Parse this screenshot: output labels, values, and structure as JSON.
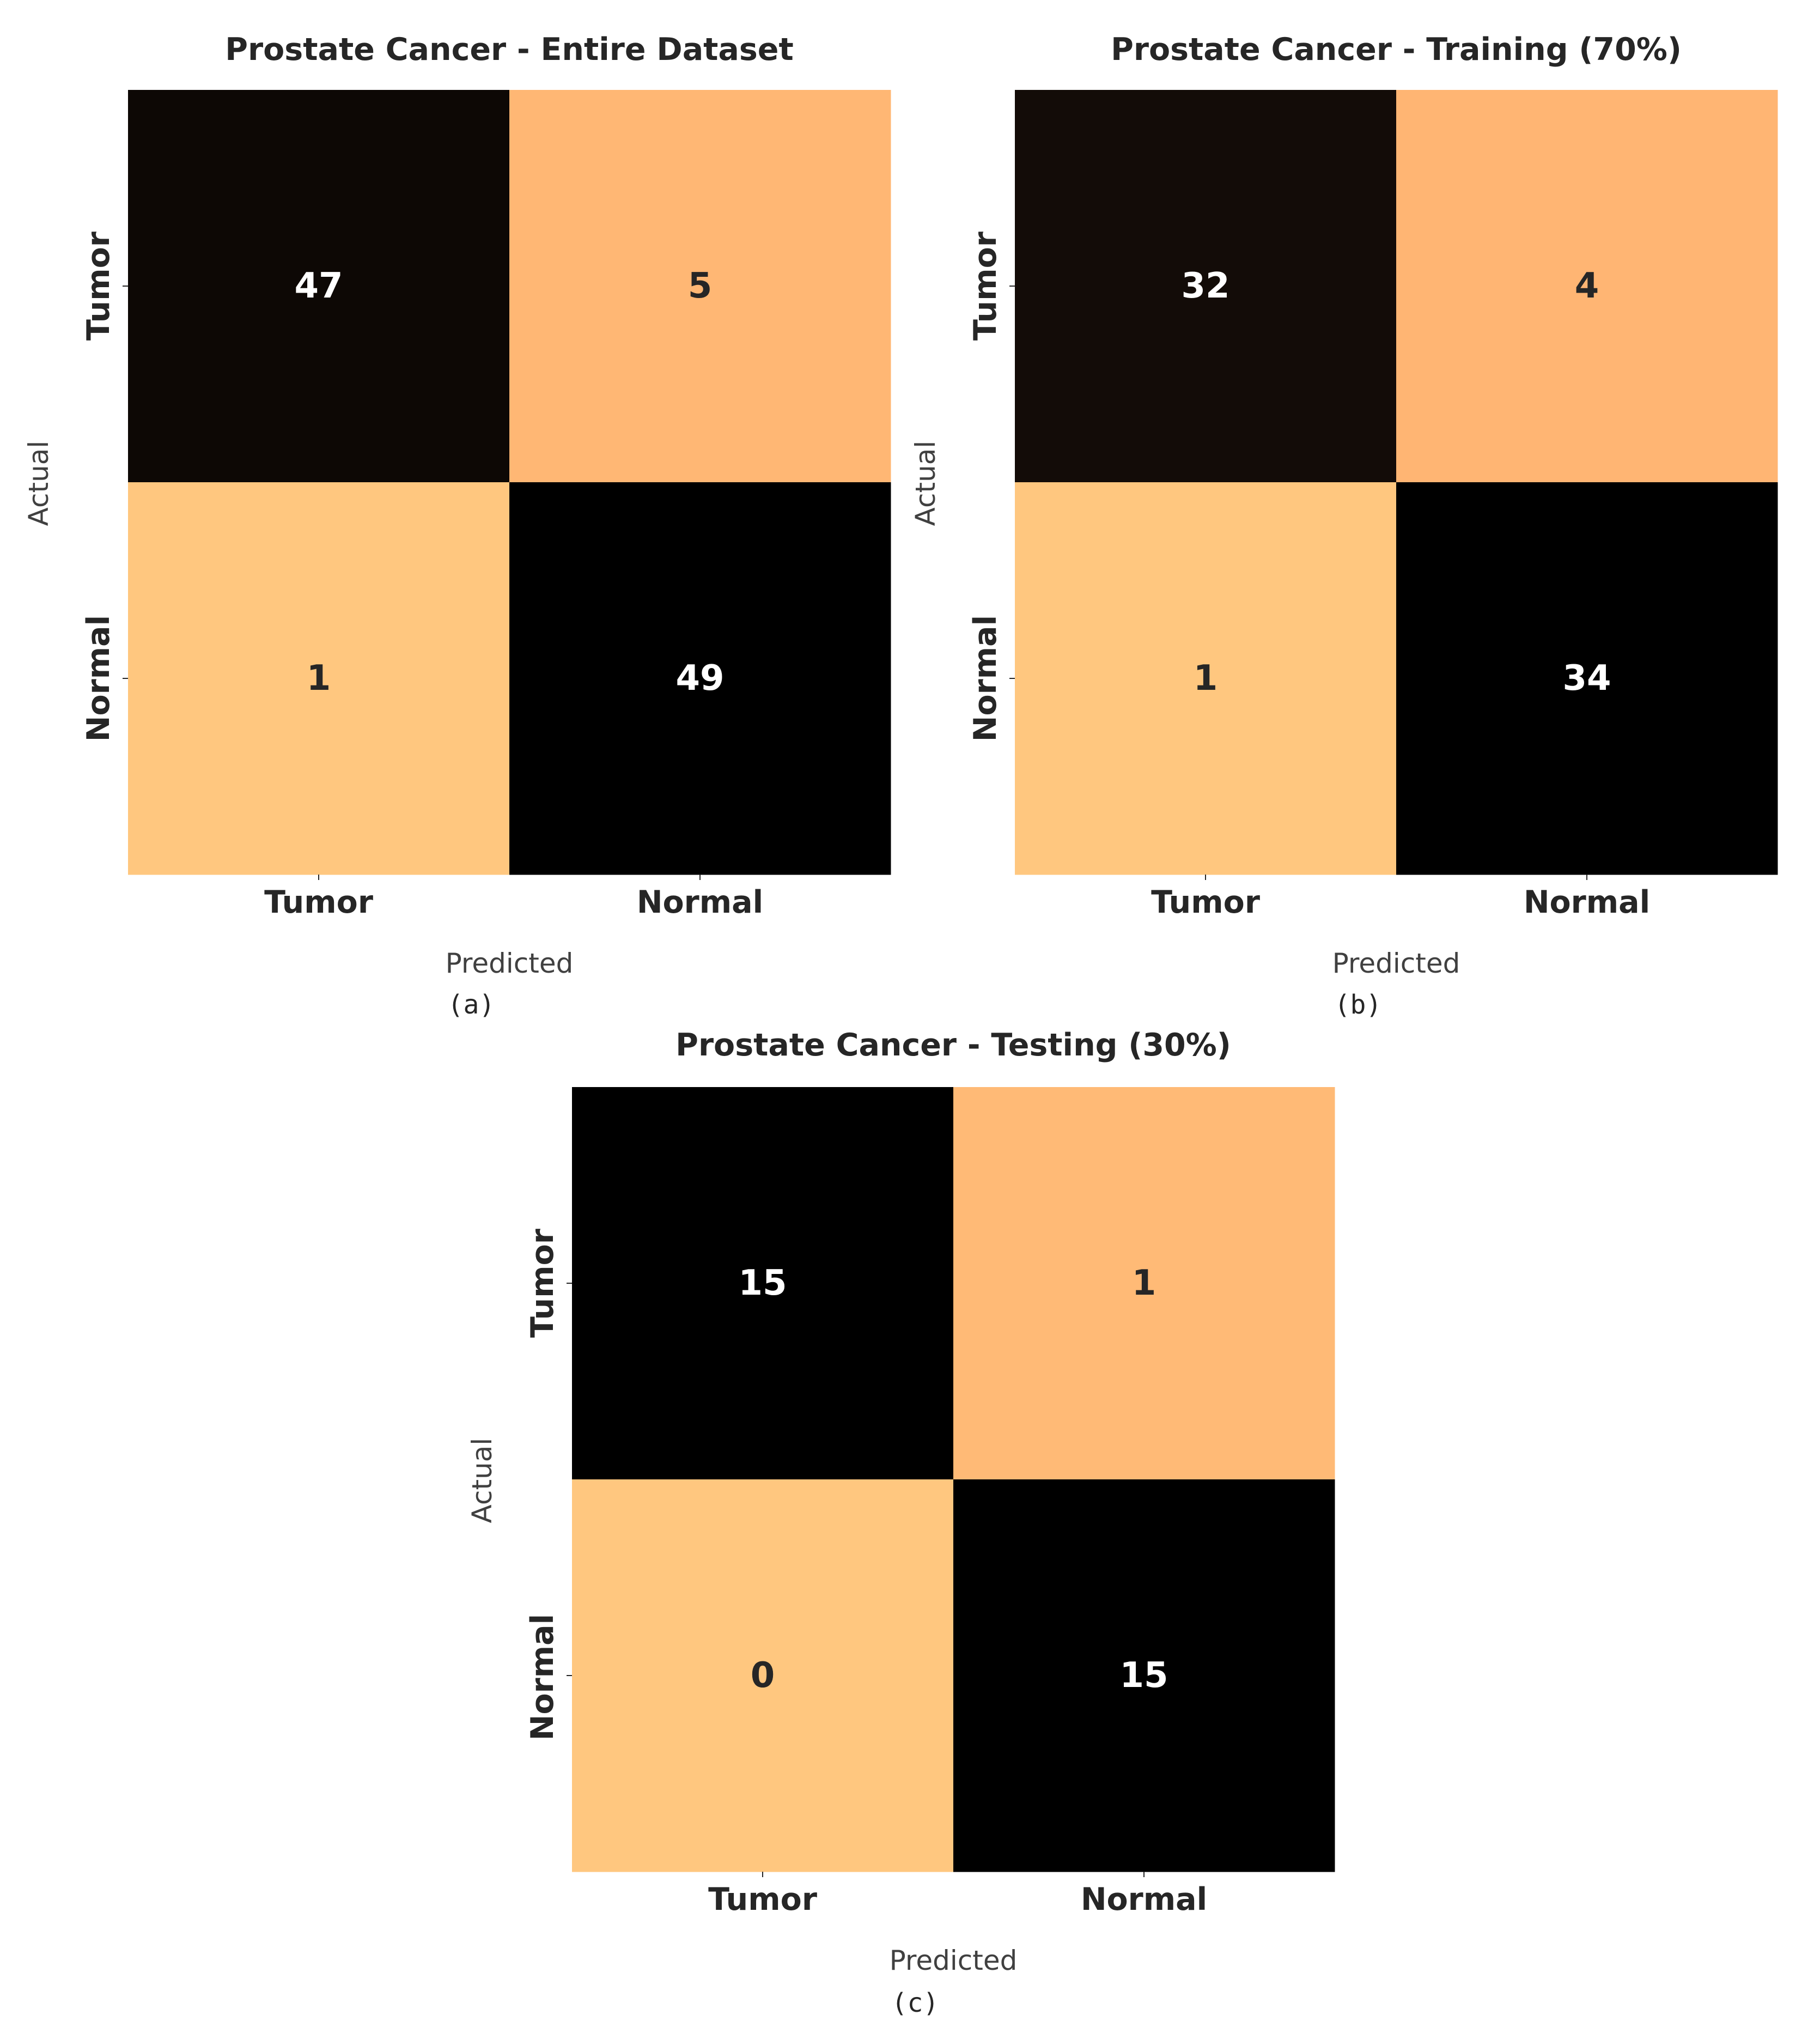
{
  "chart_data": [
    {
      "type": "heatmap",
      "title": "Prostate Cancer - Entire Dataset",
      "caption": "(a)",
      "xlabel": "Predicted",
      "ylabel": "Actual",
      "x_categories": [
        "Tumor",
        "Normal"
      ],
      "y_categories": [
        "Tumor",
        "Normal"
      ],
      "values": [
        [
          47,
          5
        ],
        [
          1,
          49
        ]
      ],
      "colormap": "copper (reversed)",
      "colorbar": false
    },
    {
      "type": "heatmap",
      "title": "Prostate Cancer - Training (70%)",
      "caption": "(b)",
      "xlabel": "Predicted",
      "ylabel": "Actual",
      "x_categories": [
        "Tumor",
        "Normal"
      ],
      "y_categories": [
        "Tumor",
        "Normal"
      ],
      "values": [
        [
          32,
          4
        ],
        [
          1,
          34
        ]
      ],
      "colormap": "copper (reversed)",
      "colorbar": false
    },
    {
      "type": "heatmap",
      "title": "Prostate Cancer - Testing (30%)",
      "caption": "(c)",
      "xlabel": "Predicted",
      "ylabel": "Actual",
      "x_categories": [
        "Tumor",
        "Normal"
      ],
      "y_categories": [
        "Tumor",
        "Normal"
      ],
      "values": [
        [
          15,
          1
        ],
        [
          0,
          15
        ]
      ],
      "colormap": "copper (reversed)",
      "colorbar": false
    }
  ],
  "colors": {
    "text_dark": "#262626",
    "text_light": "#ffffff",
    "axis_label": "#404040"
  }
}
